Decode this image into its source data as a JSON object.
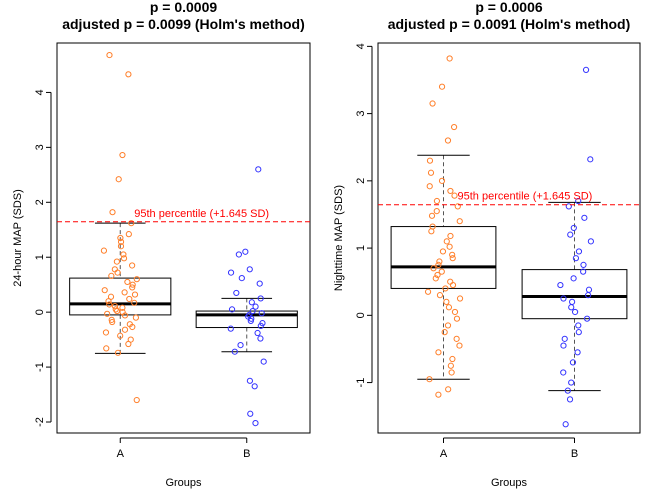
{
  "chart_data": [
    {
      "type": "box",
      "title": "p = 0.0009",
      "subtitle": "adjusted p = 0.0099  (Holm's method)",
      "xlabel": "Groups",
      "ylabel": "24-hour MAP (SDS)",
      "ylim": [
        -2.2,
        4.9
      ],
      "y_ticks": [
        -2,
        -1,
        0,
        1,
        2,
        3,
        4
      ],
      "categories": [
        "A",
        "B"
      ],
      "reference_line": {
        "y": 1.645,
        "label": "95th percentile (+1.645 SD)",
        "color": "#ff0000"
      },
      "groups": [
        {
          "name": "A",
          "point_color": "#ff7f2a",
          "box": {
            "lower_whisker": -0.75,
            "q1": -0.05,
            "median": 0.15,
            "q3": 0.62,
            "upper_whisker": 1.62
          },
          "points": [
            4.68,
            4.33,
            2.86,
            2.42,
            1.82,
            1.62,
            1.42,
            1.35,
            1.28,
            1.2,
            1.12,
            1.05,
            0.98,
            0.92,
            0.85,
            0.78,
            0.72,
            0.66,
            0.6,
            0.55,
            0.5,
            0.45,
            0.4,
            0.36,
            0.32,
            0.28,
            0.24,
            0.2,
            0.17,
            0.14,
            0.11,
            0.08,
            0.05,
            0.02,
            0.0,
            -0.03,
            -0.06,
            -0.1,
            -0.14,
            -0.18,
            -0.22,
            -0.27,
            -0.32,
            -0.37,
            -0.43,
            -0.5,
            -0.58,
            -0.66,
            -0.74,
            -1.6
          ]
        },
        {
          "name": "B",
          "point_color": "#3333ff",
          "box": {
            "lower_whisker": -0.72,
            "q1": -0.28,
            "median": -0.05,
            "q3": 0.02,
            "upper_whisker": 0.25
          },
          "points": [
            2.6,
            1.1,
            1.05,
            0.78,
            0.72,
            0.62,
            0.52,
            0.35,
            0.25,
            0.18,
            0.1,
            0.05,
            0.02,
            -0.02,
            -0.05,
            -0.08,
            -0.12,
            -0.16,
            -0.2,
            -0.25,
            -0.3,
            -0.38,
            -0.48,
            -0.6,
            -0.72,
            -0.9,
            -1.25,
            -1.35,
            -1.85,
            -2.02
          ]
        }
      ]
    },
    {
      "type": "box",
      "title": "p = 0.0006",
      "subtitle": "adjusted p = 0.0091  (Holm's method)",
      "xlabel": "Groups",
      "ylabel": "Nighttime MAP (SDS)",
      "ylim": [
        -1.75,
        4.05
      ],
      "y_ticks": [
        -1,
        0,
        1,
        2,
        3,
        4
      ],
      "categories": [
        "A",
        "B"
      ],
      "reference_line": {
        "y": 1.645,
        "label": "95th percentile (+1.645 SD)",
        "color": "#ff0000"
      },
      "groups": [
        {
          "name": "A",
          "point_color": "#ff7f2a",
          "box": {
            "lower_whisker": -0.95,
            "q1": 0.4,
            "median": 0.72,
            "q3": 1.32,
            "upper_whisker": 2.38
          },
          "points": [
            3.82,
            3.4,
            3.15,
            2.8,
            2.6,
            2.3,
            2.12,
            2.0,
            1.92,
            1.85,
            1.78,
            1.7,
            1.62,
            1.55,
            1.48,
            1.4,
            1.32,
            1.25,
            1.18,
            1.1,
            1.02,
            0.95,
            0.9,
            0.85,
            0.8,
            0.75,
            0.7,
            0.65,
            0.6,
            0.55,
            0.5,
            0.45,
            0.4,
            0.35,
            0.3,
            0.25,
            0.2,
            0.12,
            0.05,
            -0.05,
            -0.15,
            -0.25,
            -0.35,
            -0.45,
            -0.55,
            -0.65,
            -0.75,
            -0.85,
            -0.95,
            -1.1,
            -1.18
          ]
        },
        {
          "name": "B",
          "point_color": "#3333ff",
          "box": {
            "lower_whisker": -1.12,
            "q1": -0.05,
            "median": 0.28,
            "q3": 0.68,
            "upper_whisker": 1.68
          },
          "points": [
            3.65,
            2.32,
            1.7,
            1.62,
            1.45,
            1.3,
            1.2,
            1.1,
            0.95,
            0.85,
            0.75,
            0.65,
            0.55,
            0.45,
            0.38,
            0.3,
            0.25,
            0.2,
            0.12,
            0.05,
            -0.05,
            -0.15,
            -0.25,
            -0.35,
            -0.45,
            -0.55,
            -0.7,
            -0.85,
            -1.0,
            -1.12,
            -1.25,
            -1.62
          ]
        }
      ]
    }
  ]
}
